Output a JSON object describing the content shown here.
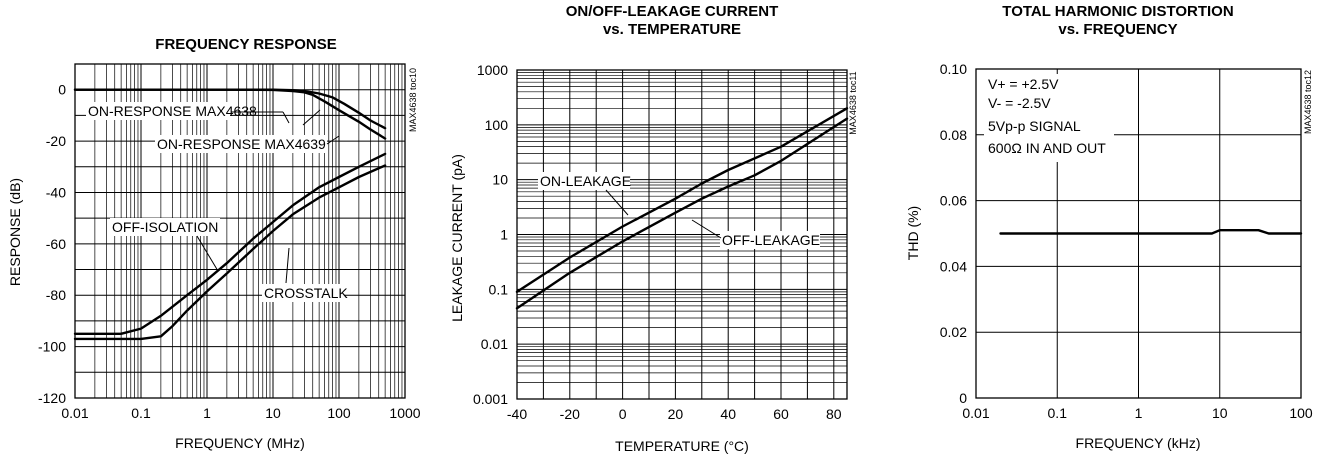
{
  "chart_data": [
    {
      "type": "line",
      "title": "FREQUENCY RESPONSE",
      "xlabel": "FREQUENCY (MHz)",
      "ylabel": "RESPONSE (dB)",
      "x_scale": "log",
      "xlim": [
        0.01,
        1000
      ],
      "ylim": [
        -120,
        10
      ],
      "x_ticks": [
        0.01,
        0.1,
        1,
        10,
        100,
        1000
      ],
      "x_tick_labels": [
        "0.01",
        "0.1",
        "1",
        "10",
        "100",
        "1000"
      ],
      "y_ticks": [
        0,
        -20,
        -40,
        -60,
        -80,
        -100,
        -120
      ],
      "y_tick_labels": [
        "0",
        "-20",
        "-40",
        "-60",
        "-80",
        "-100",
        "-120"
      ],
      "grid": true,
      "side_label": "MAX4638 toc10",
      "series": [
        {
          "name": "ON-RESPONSE MAX4638",
          "x": [
            0.01,
            1,
            10,
            20,
            30,
            50,
            80,
            120,
            200,
            300,
            500
          ],
          "y": [
            0,
            0,
            0,
            -0.2,
            -0.5,
            -1.5,
            -3,
            -5.5,
            -9,
            -12,
            -15
          ]
        },
        {
          "name": "ON-RESPONSE MAX4639",
          "x": [
            0.01,
            1,
            10,
            20,
            30,
            40,
            60,
            100,
            200,
            300,
            500
          ],
          "y": [
            0,
            0,
            -0.1,
            -0.5,
            -1,
            -2,
            -4.5,
            -8,
            -12.5,
            -15.5,
            -19
          ]
        },
        {
          "name": "OFF-ISOLATION",
          "x": [
            0.01,
            0.05,
            0.1,
            0.2,
            0.5,
            1,
            2,
            5,
            10,
            20,
            50,
            100,
            200,
            500
          ],
          "y": [
            -95,
            -95,
            -93,
            -88,
            -80,
            -74,
            -67.5,
            -58,
            -51.5,
            -45,
            -38,
            -34,
            -30,
            -25
          ]
        },
        {
          "name": "CROSSTALK",
          "x": [
            0.01,
            0.1,
            0.2,
            0.3,
            0.5,
            1,
            2,
            5,
            10,
            20,
            50,
            100,
            200,
            500
          ],
          "y": [
            -97,
            -97,
            -96,
            -92,
            -86,
            -78.5,
            -71.5,
            -62,
            -55,
            -48.5,
            -42,
            -38,
            -34,
            -29.5
          ]
        }
      ],
      "annotations": [
        "ON-RESPONSE MAX4638",
        "ON-RESPONSE MAX4639",
        "OFF-ISOLATION",
        "CROSSTALK"
      ]
    },
    {
      "type": "line",
      "title": "ON/OFF-LEAKAGE CURRENT",
      "subtitle": "vs. TEMPERATURE",
      "xlabel": "TEMPERATURE (°C)",
      "ylabel": "LEAKAGE CURRENT (pA)",
      "y_scale": "log",
      "xlim": [
        -40,
        85
      ],
      "ylim": [
        0.001,
        1000
      ],
      "x_ticks": [
        -40,
        -20,
        0,
        20,
        40,
        60,
        80
      ],
      "x_tick_labels": [
        "-40",
        "-20",
        "0",
        "20",
        "40",
        "60",
        "80"
      ],
      "y_ticks": [
        1000,
        100,
        10,
        1,
        0.1,
        0.01,
        0.001
      ],
      "y_tick_labels": [
        "1000",
        "100",
        "10",
        "1",
        "0.1",
        "0.01",
        "0.001"
      ],
      "grid": true,
      "side_label": "MAX4638 toc11",
      "series": [
        {
          "name": "ON-LEAKAGE",
          "x": [
            -40,
            -20,
            0,
            20,
            30,
            40,
            60,
            85
          ],
          "y": [
            0.09,
            0.38,
            1.4,
            4.5,
            8.5,
            15,
            40,
            200
          ]
        },
        {
          "name": "OFF-LEAKAGE",
          "x": [
            -40,
            -20,
            0,
            20,
            30,
            40,
            50,
            60,
            85
          ],
          "y": [
            0.045,
            0.2,
            0.75,
            2.5,
            4.5,
            7.5,
            12,
            22,
            130
          ]
        }
      ],
      "annotations": [
        "ON-LEAKAGE",
        "OFF-LEAKAGE"
      ]
    },
    {
      "type": "line",
      "title": "TOTAL HARMONIC DISTORTION",
      "subtitle": "vs. FREQUENCY",
      "xlabel": "FREQUENCY (kHz)",
      "ylabel": "THD (%)",
      "x_scale": "log",
      "xlim": [
        0.01,
        100
      ],
      "ylim": [
        0,
        0.1
      ],
      "x_ticks": [
        0.01,
        0.1,
        1,
        10,
        100
      ],
      "x_tick_labels": [
        "0.01",
        "0.1",
        "1",
        "10",
        "100"
      ],
      "y_ticks": [
        0,
        0.02,
        0.04,
        0.06,
        0.08,
        0.1
      ],
      "y_tick_labels": [
        "0",
        "0.02",
        "0.04",
        "0.06",
        "0.08",
        "0.10"
      ],
      "grid": true,
      "side_label": "MAX4638 toc12",
      "conditions": [
        "V+ = +2.5V",
        "V- = -2.5V",
        "5Vp-p SIGNAL",
        "600Ω IN AND OUT"
      ],
      "series": [
        {
          "x": [
            0.02,
            1,
            8,
            10,
            20,
            30,
            40,
            60,
            100
          ],
          "y": [
            0.05,
            0.05,
            0.05,
            0.051,
            0.051,
            0.051,
            0.05,
            0.05,
            0.05
          ]
        }
      ]
    }
  ]
}
